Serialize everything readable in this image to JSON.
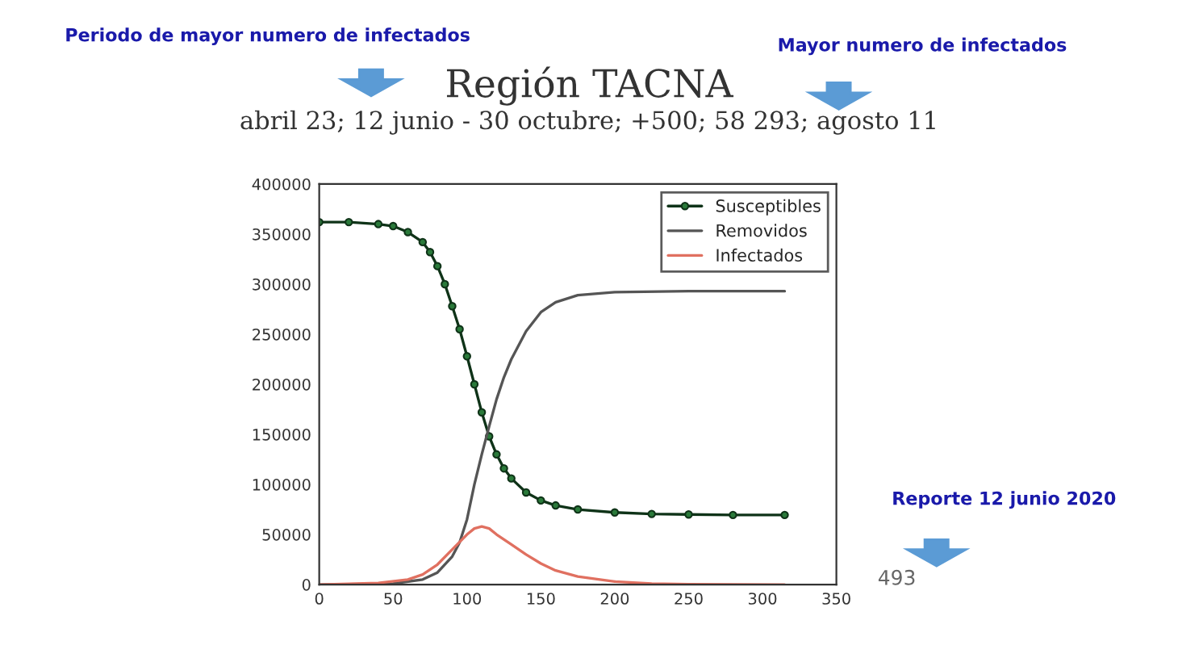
{
  "chart_data": {
    "type": "line",
    "title": "Región TACNA",
    "subtitle": "abril 23; 12 junio - 30 octubre; +500; 58 293; agosto 11",
    "annotations": [
      "Periodo de mayor numero de infectados",
      "Mayor numero de infectados",
      "Reporte 12 junio 2020",
      "493"
    ],
    "xlim": [
      0,
      350
    ],
    "xticks": [
      0,
      50,
      100,
      150,
      200,
      250,
      300,
      350
    ],
    "ylim": [
      0,
      400000
    ],
    "yticks": [
      0,
      50000,
      100000,
      150000,
      200000,
      250000,
      300000,
      350000,
      400000
    ],
    "grid": false,
    "legend": "top right",
    "series": [
      {
        "name": "Susceptibles",
        "color": "#0f3318",
        "marker": "circle",
        "x": [
          0,
          20,
          40,
          50,
          60,
          70,
          75,
          80,
          85,
          90,
          95,
          100,
          105,
          110,
          115,
          120,
          125,
          130,
          140,
          150,
          160,
          175,
          200,
          225,
          250,
          280,
          315
        ],
        "values": [
          362000,
          362000,
          360000,
          358000,
          352000,
          342000,
          332000,
          318000,
          300000,
          278000,
          255000,
          228000,
          200000,
          172000,
          148000,
          130000,
          116000,
          106000,
          92000,
          84000,
          79000,
          75000,
          72000,
          70500,
          70000,
          69500,
          69500
        ]
      },
      {
        "name": "Removidos",
        "color": "#555555",
        "x": [
          0,
          50,
          70,
          80,
          90,
          95,
          100,
          105,
          110,
          115,
          120,
          125,
          130,
          140,
          150,
          160,
          175,
          200,
          250,
          315
        ],
        "values": [
          0,
          1000,
          5000,
          12000,
          28000,
          42000,
          65000,
          100000,
          130000,
          158000,
          185000,
          207000,
          225000,
          253000,
          272000,
          282000,
          289000,
          292000,
          293000,
          293000
        ]
      },
      {
        "name": "Infectados",
        "color": "#e07060",
        "x": [
          0,
          40,
          60,
          70,
          80,
          90,
          100,
          105,
          110,
          115,
          120,
          130,
          140,
          150,
          160,
          175,
          200,
          225,
          250,
          315
        ],
        "values": [
          0,
          1500,
          5000,
          10000,
          20000,
          35000,
          50000,
          56000,
          58000,
          56000,
          50000,
          40000,
          30000,
          21000,
          14000,
          8000,
          3000,
          1000,
          300,
          0
        ]
      }
    ]
  }
}
